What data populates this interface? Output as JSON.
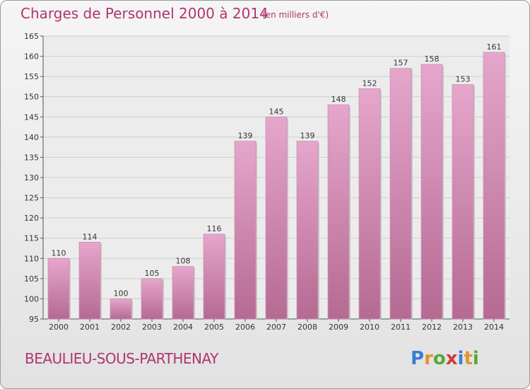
{
  "header": {
    "title": "Charges de Personnel 2000 à 2014",
    "subtitle": "(en milliers d'€)"
  },
  "footer": {
    "commune": "BEAULIEU-SOUS-PARTHENAY",
    "logo_text": "Proxiti"
  },
  "colors": {
    "accent": "#b0356e",
    "bar_top": "#e6a6cb",
    "bar_bottom": "#b56a92",
    "grid": "#cfcfcf"
  },
  "chart_data": {
    "type": "bar",
    "categories": [
      "2000",
      "2001",
      "2002",
      "2003",
      "2004",
      "2005",
      "2006",
      "2007",
      "2008",
      "2009",
      "2010",
      "2011",
      "2012",
      "2013",
      "2014"
    ],
    "values": [
      110,
      114,
      100,
      105,
      108,
      116,
      139,
      145,
      139,
      148,
      152,
      157,
      158,
      153,
      161
    ],
    "ylim": [
      95,
      165
    ],
    "yticks": [
      95,
      100,
      105,
      110,
      115,
      120,
      125,
      130,
      135,
      140,
      145,
      150,
      155,
      160,
      165
    ],
    "grid": true,
    "data_labels": true
  }
}
